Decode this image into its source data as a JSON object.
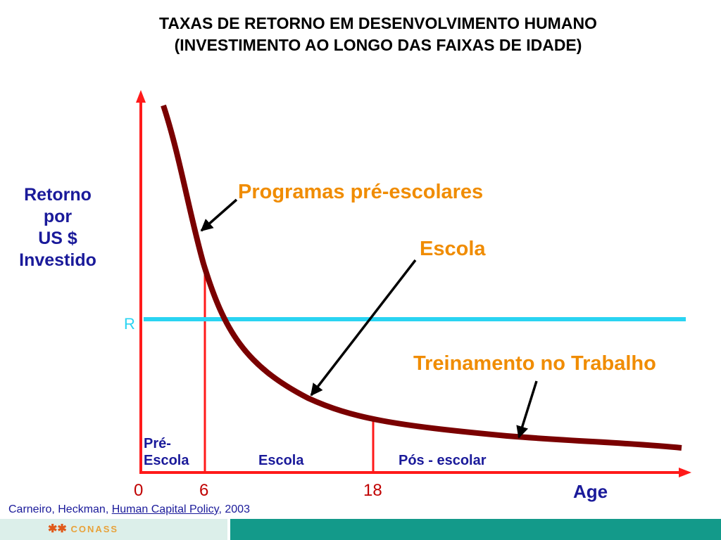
{
  "title": {
    "line1": "TAXAS DE RETORNO EM DESENVOLVIMENTO HUMANO",
    "line2": "(INVESTIMENTO AO LONGO DAS FAIXAS DE IDADE)"
  },
  "y_axis_label": [
    "Retorno",
    "por",
    "US $",
    "Investido"
  ],
  "x_axis_label": "Age",
  "ticks": {
    "t0": "0",
    "t6": "6",
    "t18": "18"
  },
  "r_line_label": "R",
  "annotations": {
    "preschool_programs": "Programas pré-escolares",
    "school": "Escola",
    "job_training": "Treinamento no Trabalho"
  },
  "phases": {
    "preschool_line1": "Pré-",
    "preschool_line2": "Escola",
    "school": "Escola",
    "post_school": "Pós - escolar"
  },
  "citation": {
    "authors": "Carneiro, Heckman, ",
    "work": "Human Capital Policy",
    "year": ", 2003"
  },
  "footer": {
    "logo_text": "CONASS"
  },
  "colors": {
    "axis": "#ff1a1a",
    "curve": "#7a0000",
    "r_line": "#2ad4f2",
    "annotation": "#f08c00",
    "label": "#1a1a9a",
    "footer_teal": "#139a8a"
  }
}
